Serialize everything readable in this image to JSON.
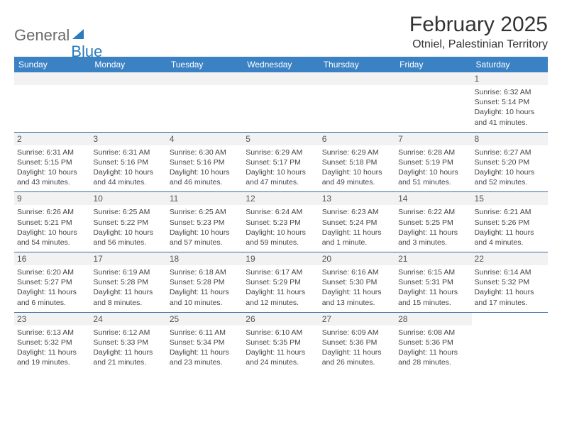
{
  "logo": {
    "word1": "General",
    "word2": "Blue"
  },
  "title": "February 2025",
  "location": "Otniel, Palestinian Territory",
  "colors": {
    "header_bg": "#3b82c4",
    "header_text": "#ffffff",
    "daynum_bg": "#f2f2f2",
    "rule": "#3b6ea0",
    "logo_gray": "#6b6b6b",
    "logo_blue": "#2b7bbd",
    "body_text": "#444444"
  },
  "dow": [
    "Sunday",
    "Monday",
    "Tuesday",
    "Wednesday",
    "Thursday",
    "Friday",
    "Saturday"
  ],
  "weeks": [
    [
      null,
      null,
      null,
      null,
      null,
      null,
      {
        "n": "1",
        "sr": "Sunrise: 6:32 AM",
        "ss": "Sunset: 5:14 PM",
        "d1": "Daylight: 10 hours",
        "d2": "and 41 minutes."
      }
    ],
    [
      {
        "n": "2",
        "sr": "Sunrise: 6:31 AM",
        "ss": "Sunset: 5:15 PM",
        "d1": "Daylight: 10 hours",
        "d2": "and 43 minutes."
      },
      {
        "n": "3",
        "sr": "Sunrise: 6:31 AM",
        "ss": "Sunset: 5:16 PM",
        "d1": "Daylight: 10 hours",
        "d2": "and 44 minutes."
      },
      {
        "n": "4",
        "sr": "Sunrise: 6:30 AM",
        "ss": "Sunset: 5:16 PM",
        "d1": "Daylight: 10 hours",
        "d2": "and 46 minutes."
      },
      {
        "n": "5",
        "sr": "Sunrise: 6:29 AM",
        "ss": "Sunset: 5:17 PM",
        "d1": "Daylight: 10 hours",
        "d2": "and 47 minutes."
      },
      {
        "n": "6",
        "sr": "Sunrise: 6:29 AM",
        "ss": "Sunset: 5:18 PM",
        "d1": "Daylight: 10 hours",
        "d2": "and 49 minutes."
      },
      {
        "n": "7",
        "sr": "Sunrise: 6:28 AM",
        "ss": "Sunset: 5:19 PM",
        "d1": "Daylight: 10 hours",
        "d2": "and 51 minutes."
      },
      {
        "n": "8",
        "sr": "Sunrise: 6:27 AM",
        "ss": "Sunset: 5:20 PM",
        "d1": "Daylight: 10 hours",
        "d2": "and 52 minutes."
      }
    ],
    [
      {
        "n": "9",
        "sr": "Sunrise: 6:26 AM",
        "ss": "Sunset: 5:21 PM",
        "d1": "Daylight: 10 hours",
        "d2": "and 54 minutes."
      },
      {
        "n": "10",
        "sr": "Sunrise: 6:25 AM",
        "ss": "Sunset: 5:22 PM",
        "d1": "Daylight: 10 hours",
        "d2": "and 56 minutes."
      },
      {
        "n": "11",
        "sr": "Sunrise: 6:25 AM",
        "ss": "Sunset: 5:23 PM",
        "d1": "Daylight: 10 hours",
        "d2": "and 57 minutes."
      },
      {
        "n": "12",
        "sr": "Sunrise: 6:24 AM",
        "ss": "Sunset: 5:23 PM",
        "d1": "Daylight: 10 hours",
        "d2": "and 59 minutes."
      },
      {
        "n": "13",
        "sr": "Sunrise: 6:23 AM",
        "ss": "Sunset: 5:24 PM",
        "d1": "Daylight: 11 hours",
        "d2": "and 1 minute."
      },
      {
        "n": "14",
        "sr": "Sunrise: 6:22 AM",
        "ss": "Sunset: 5:25 PM",
        "d1": "Daylight: 11 hours",
        "d2": "and 3 minutes."
      },
      {
        "n": "15",
        "sr": "Sunrise: 6:21 AM",
        "ss": "Sunset: 5:26 PM",
        "d1": "Daylight: 11 hours",
        "d2": "and 4 minutes."
      }
    ],
    [
      {
        "n": "16",
        "sr": "Sunrise: 6:20 AM",
        "ss": "Sunset: 5:27 PM",
        "d1": "Daylight: 11 hours",
        "d2": "and 6 minutes."
      },
      {
        "n": "17",
        "sr": "Sunrise: 6:19 AM",
        "ss": "Sunset: 5:28 PM",
        "d1": "Daylight: 11 hours",
        "d2": "and 8 minutes."
      },
      {
        "n": "18",
        "sr": "Sunrise: 6:18 AM",
        "ss": "Sunset: 5:28 PM",
        "d1": "Daylight: 11 hours",
        "d2": "and 10 minutes."
      },
      {
        "n": "19",
        "sr": "Sunrise: 6:17 AM",
        "ss": "Sunset: 5:29 PM",
        "d1": "Daylight: 11 hours",
        "d2": "and 12 minutes."
      },
      {
        "n": "20",
        "sr": "Sunrise: 6:16 AM",
        "ss": "Sunset: 5:30 PM",
        "d1": "Daylight: 11 hours",
        "d2": "and 13 minutes."
      },
      {
        "n": "21",
        "sr": "Sunrise: 6:15 AM",
        "ss": "Sunset: 5:31 PM",
        "d1": "Daylight: 11 hours",
        "d2": "and 15 minutes."
      },
      {
        "n": "22",
        "sr": "Sunrise: 6:14 AM",
        "ss": "Sunset: 5:32 PM",
        "d1": "Daylight: 11 hours",
        "d2": "and 17 minutes."
      }
    ],
    [
      {
        "n": "23",
        "sr": "Sunrise: 6:13 AM",
        "ss": "Sunset: 5:32 PM",
        "d1": "Daylight: 11 hours",
        "d2": "and 19 minutes."
      },
      {
        "n": "24",
        "sr": "Sunrise: 6:12 AM",
        "ss": "Sunset: 5:33 PM",
        "d1": "Daylight: 11 hours",
        "d2": "and 21 minutes."
      },
      {
        "n": "25",
        "sr": "Sunrise: 6:11 AM",
        "ss": "Sunset: 5:34 PM",
        "d1": "Daylight: 11 hours",
        "d2": "and 23 minutes."
      },
      {
        "n": "26",
        "sr": "Sunrise: 6:10 AM",
        "ss": "Sunset: 5:35 PM",
        "d1": "Daylight: 11 hours",
        "d2": "and 24 minutes."
      },
      {
        "n": "27",
        "sr": "Sunrise: 6:09 AM",
        "ss": "Sunset: 5:36 PM",
        "d1": "Daylight: 11 hours",
        "d2": "and 26 minutes."
      },
      {
        "n": "28",
        "sr": "Sunrise: 6:08 AM",
        "ss": "Sunset: 5:36 PM",
        "d1": "Daylight: 11 hours",
        "d2": "and 28 minutes."
      },
      null
    ]
  ]
}
